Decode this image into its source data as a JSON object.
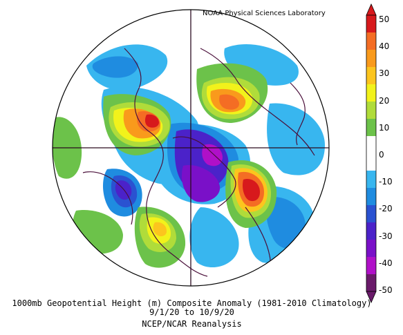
{
  "credit": "NOAA Physical Sciences Laboratory",
  "caption": {
    "line1": "1000mb Geopotential Height (m) Composite Anomaly (1981-2010 Climatology)",
    "line2": "9/1/20  to 10/9/20",
    "line3": "NCEP/NCAR Reanalysis"
  },
  "colorbar": {
    "ticks": [
      "50",
      "40",
      "30",
      "20",
      "10",
      "0",
      "-10",
      "-20",
      "-30",
      "-40",
      "-50"
    ],
    "colors": [
      "#d7191c",
      "#f46d24",
      "#f99a1c",
      "#fcc51e",
      "#f2f21b",
      "#b0dc3a",
      "#6cc24a",
      "#ffffff",
      "#ffffff",
      "#38b6ef",
      "#1f8ce0",
      "#2a52d1",
      "#4b22c9",
      "#7a10c8",
      "#b010c8",
      "#6a1a6a"
    ]
  },
  "map": {
    "projection": "polar-stereographic",
    "colors": {
      "strong_neg": "#6a1a6a",
      "neg40": "#b010c8",
      "neg30": "#7a10c8",
      "neg20": "#4b22c9",
      "neg15": "#2a52d1",
      "neg10": "#1f8ce0",
      "neg5": "#38b6ef",
      "pos5": "#6cc24a",
      "pos10": "#b0dc3a",
      "pos20": "#f2f21b",
      "pos25": "#fcc51e",
      "pos30": "#f99a1c",
      "pos40": "#f46d24",
      "pos50": "#d7191c"
    }
  }
}
